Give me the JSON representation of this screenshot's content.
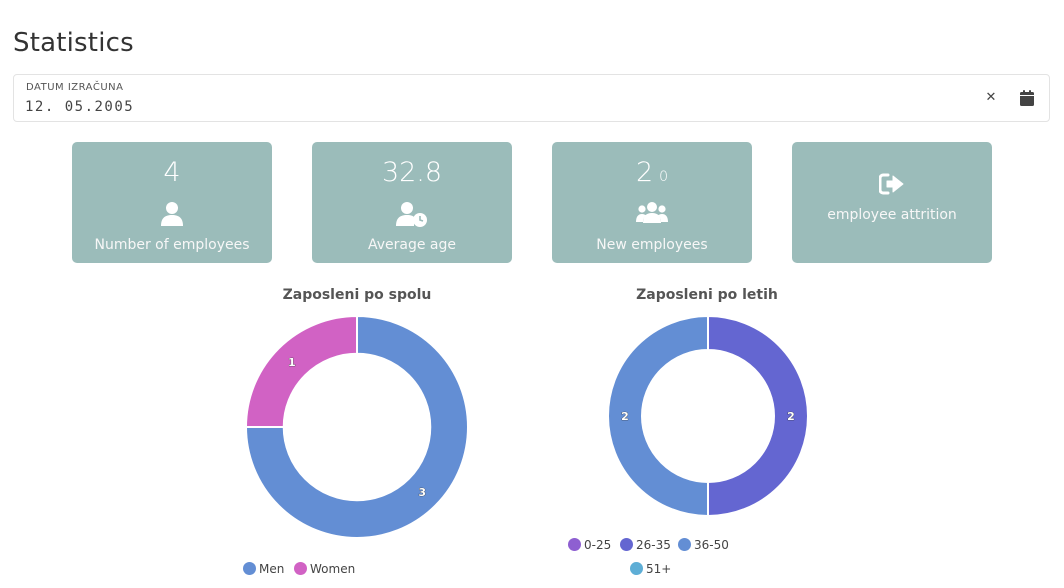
{
  "page": {
    "title": "Statistics"
  },
  "date_filter": {
    "label": "DATUM IZRAČUNA",
    "value": "12. 05.2005",
    "clear_icon": "close-icon",
    "calendar_icon": "calendar-icon"
  },
  "cards": [
    {
      "value": "4",
      "suffix": "",
      "label": "Number of employees",
      "icon": "user-icon"
    },
    {
      "value": "32.8",
      "suffix": "",
      "label": "Average age",
      "icon": "user-clock-icon"
    },
    {
      "value": "2",
      "suffix": "0",
      "label": "New employees",
      "icon": "users-icon"
    },
    {
      "value": "",
      "suffix": "",
      "label": "employee attrition",
      "icon": "sign-out-icon"
    }
  ],
  "colors": {
    "card_bg": "#9bbcba"
  },
  "chart_data": [
    {
      "type": "pie",
      "variant": "doughnut",
      "title": "Zaposleni po spolu",
      "categories": [
        "Men",
        "Women"
      ],
      "values": [
        3,
        1
      ],
      "colors": [
        "#638ed4",
        "#d162c4"
      ],
      "legend": "bottom"
    },
    {
      "type": "pie",
      "variant": "doughnut",
      "title": "Zaposleni po letih",
      "categories": [
        "0-25",
        "26-35",
        "36-50",
        "51+"
      ],
      "values": [
        0,
        2,
        2,
        0
      ],
      "colors": [
        "#8e5fd1",
        "#6466d1",
        "#638ed4",
        "#5eaed6"
      ],
      "legend": "bottom"
    }
  ]
}
